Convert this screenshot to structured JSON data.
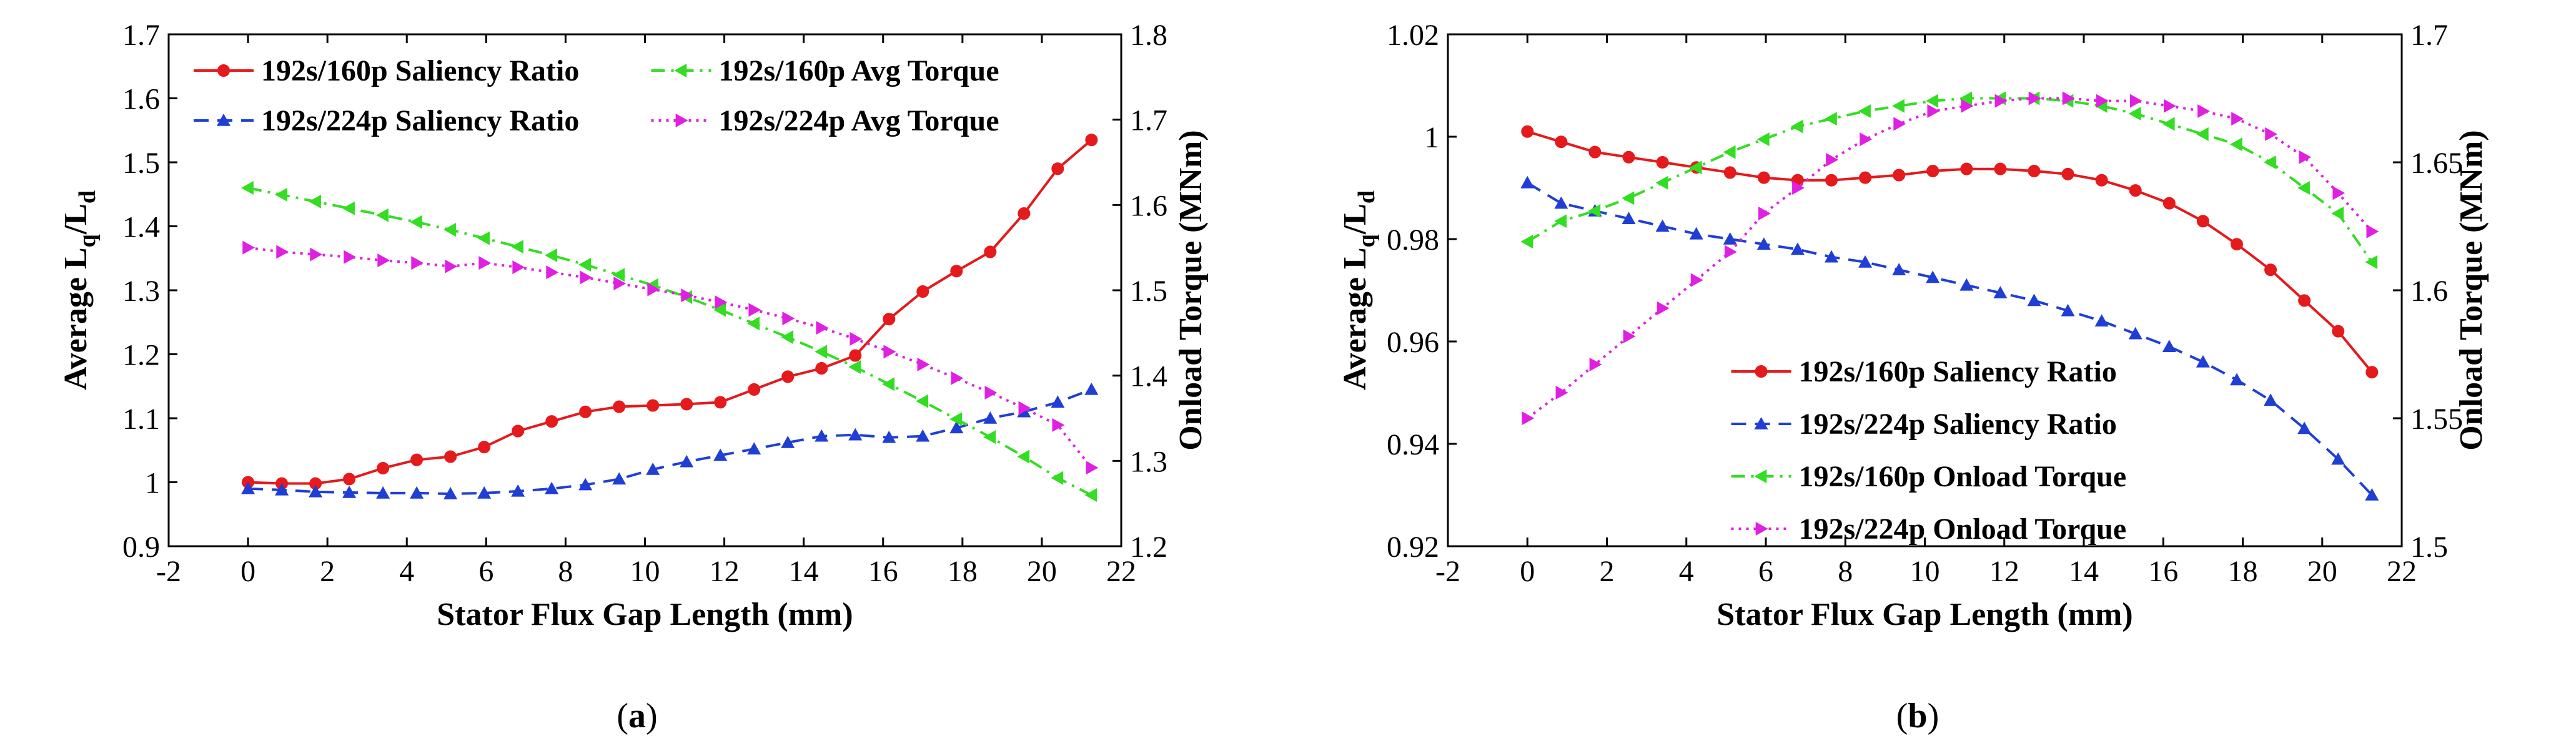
{
  "colors": {
    "red": "#e41a1c",
    "blue": "#1f3fd4",
    "green": "#33dd22",
    "magenta": "#e020e0"
  },
  "panels": [
    {
      "open": "(",
      "letter": "a",
      "close": ")"
    },
    {
      "open": "(",
      "letter": "b",
      "close": ")"
    }
  ],
  "chart_data": [
    {
      "type": "line",
      "id": "a",
      "xlabel": "Stator Flux Gap Length (mm)",
      "ylabel_left": {
        "main": "Average L",
        "sub1": "q",
        "mid": "/L",
        "sub2": "d"
      },
      "ylabel_right": "Onload Torque (MNm)",
      "xlim": [
        -2,
        22
      ],
      "xticks": [
        -2,
        0,
        2,
        4,
        6,
        8,
        10,
        12,
        14,
        16,
        18,
        20,
        22
      ],
      "ylim_left": [
        0.9,
        1.7
      ],
      "yticks_left": [
        "0.9",
        "1",
        "1.1",
        "1.2",
        "1.3",
        "1.4",
        "1.5",
        "1.6",
        "1.7"
      ],
      "ylim_right": [
        1.2,
        1.8
      ],
      "yticks_right": [
        "1.2",
        "1.3",
        "1.4",
        "1.5",
        "1.6",
        "1.7",
        "1.8"
      ],
      "legend": {
        "placement": "top-inside",
        "columns": 2
      },
      "x": [
        0,
        0.85,
        1.7,
        2.55,
        3.4,
        4.25,
        5.1,
        5.95,
        6.8,
        7.65,
        8.5,
        9.35,
        10.2,
        11.05,
        11.9,
        12.75,
        13.6,
        14.45,
        15.3,
        16.15,
        17.0,
        17.85,
        18.7,
        19.55,
        20.4,
        21.25
      ],
      "series": [
        {
          "name": "192s/160p Saliency Ratio",
          "axis": "left",
          "color": "red",
          "dash": "solid",
          "marker": "circle",
          "values": [
            1.0,
            0.998,
            0.998,
            1.005,
            1.022,
            1.035,
            1.04,
            1.055,
            1.08,
            1.095,
            1.11,
            1.118,
            1.12,
            1.122,
            1.125,
            1.145,
            1.165,
            1.178,
            1.198,
            1.255,
            1.298,
            1.33,
            1.36,
            1.42,
            1.49,
            1.535
          ]
        },
        {
          "name": "192s/224p Saliency Ratio",
          "axis": "left",
          "color": "blue",
          "dash": "dashed",
          "marker": "triangle-up",
          "values": [
            0.99,
            0.988,
            0.985,
            0.984,
            0.983,
            0.983,
            0.982,
            0.983,
            0.986,
            0.99,
            0.996,
            1.005,
            1.02,
            1.032,
            1.042,
            1.052,
            1.062,
            1.072,
            1.074,
            1.07,
            1.072,
            1.085,
            1.1,
            1.11,
            1.125,
            1.145
          ]
        },
        {
          "name": "192s/160p Avg Torque",
          "axis": "right",
          "color": "green",
          "dash": "dashdot",
          "marker": "triangle-left",
          "values": [
            1.62,
            1.612,
            1.604,
            1.596,
            1.588,
            1.58,
            1.571,
            1.561,
            1.551,
            1.541,
            1.53,
            1.518,
            1.506,
            1.492,
            1.477,
            1.461,
            1.445,
            1.428,
            1.41,
            1.39,
            1.37,
            1.349,
            1.328,
            1.305,
            1.28,
            1.26
          ]
        },
        {
          "name": "192s/224p Avg Torque",
          "axis": "right",
          "color": "magenta",
          "dash": "dotted",
          "marker": "triangle-right",
          "values": [
            1.55,
            1.545,
            1.542,
            1.539,
            1.535,
            1.532,
            1.528,
            1.532,
            1.527,
            1.521,
            1.515,
            1.508,
            1.501,
            1.494,
            1.486,
            1.477,
            1.467,
            1.456,
            1.443,
            1.428,
            1.413,
            1.397,
            1.38,
            1.362,
            1.342,
            1.292
          ]
        }
      ]
    },
    {
      "type": "line",
      "id": "b",
      "xlabel": "Stator Flux Gap Length (mm)",
      "ylabel_left": {
        "main": "Average L",
        "sub1": "q",
        "mid": "/L",
        "sub2": "d"
      },
      "ylabel_right": "Onload Torque (MNm)",
      "xlim": [
        -2,
        22
      ],
      "xticks": [
        -2,
        0,
        2,
        4,
        6,
        8,
        10,
        12,
        14,
        16,
        18,
        20,
        22
      ],
      "ylim_left": [
        0.92,
        1.02
      ],
      "yticks_left": [
        "0.92",
        "0.94",
        "0.96",
        "0.98",
        "1",
        "1.02"
      ],
      "ylim_right": [
        1.5,
        1.7
      ],
      "yticks_right": [
        "1.5",
        "1.55",
        "1.6",
        "1.65",
        "1.7"
      ],
      "legend": {
        "placement": "bottom-center-inside",
        "columns": 1
      },
      "x": [
        0,
        0.85,
        1.7,
        2.55,
        3.4,
        4.25,
        5.1,
        5.95,
        6.8,
        7.65,
        8.5,
        9.35,
        10.2,
        11.05,
        11.9,
        12.75,
        13.6,
        14.45,
        15.3,
        16.15,
        17.0,
        17.85,
        18.7,
        19.55,
        20.4,
        21.25
      ],
      "series": [
        {
          "name": "192s/160p Saliency Ratio",
          "axis": "left",
          "color": "red",
          "dash": "solid",
          "marker": "circle",
          "values": [
            1.001,
            0.999,
            0.997,
            0.996,
            0.995,
            0.994,
            0.993,
            0.992,
            0.9915,
            0.9915,
            0.992,
            0.9925,
            0.9933,
            0.9937,
            0.9937,
            0.9933,
            0.9927,
            0.9915,
            0.9895,
            0.987,
            0.9835,
            0.979,
            0.974,
            0.968,
            0.962,
            0.954
          ]
        },
        {
          "name": "192s/224p Saliency Ratio",
          "axis": "left",
          "color": "blue",
          "dash": "dashed",
          "marker": "triangle-up",
          "values": [
            0.991,
            0.987,
            0.9855,
            0.984,
            0.9825,
            0.981,
            0.98,
            0.979,
            0.978,
            0.9765,
            0.9755,
            0.974,
            0.9725,
            0.971,
            0.9695,
            0.968,
            0.966,
            0.964,
            0.9615,
            0.959,
            0.956,
            0.9525,
            0.9485,
            0.943,
            0.937,
            0.93
          ]
        },
        {
          "name": "192s/160p Onload Torque",
          "axis": "right",
          "color": "green",
          "dash": "dashdot",
          "marker": "triangle-left",
          "values": [
            1.619,
            1.627,
            1.631,
            1.636,
            1.642,
            1.648,
            1.654,
            1.659,
            1.664,
            1.667,
            1.67,
            1.672,
            1.674,
            1.675,
            1.675,
            1.675,
            1.674,
            1.672,
            1.669,
            1.665,
            1.661,
            1.657,
            1.65,
            1.64,
            1.63,
            1.611
          ]
        },
        {
          "name": "192s/224p Onload Torque",
          "axis": "right",
          "color": "magenta",
          "dash": "dotted",
          "marker": "triangle-right",
          "values": [
            1.55,
            1.56,
            1.571,
            1.582,
            1.593,
            1.604,
            1.615,
            1.63,
            1.64,
            1.651,
            1.659,
            1.665,
            1.67,
            1.672,
            1.674,
            1.675,
            1.675,
            1.674,
            1.674,
            1.672,
            1.67,
            1.667,
            1.661,
            1.652,
            1.638,
            1.623
          ]
        }
      ]
    }
  ]
}
